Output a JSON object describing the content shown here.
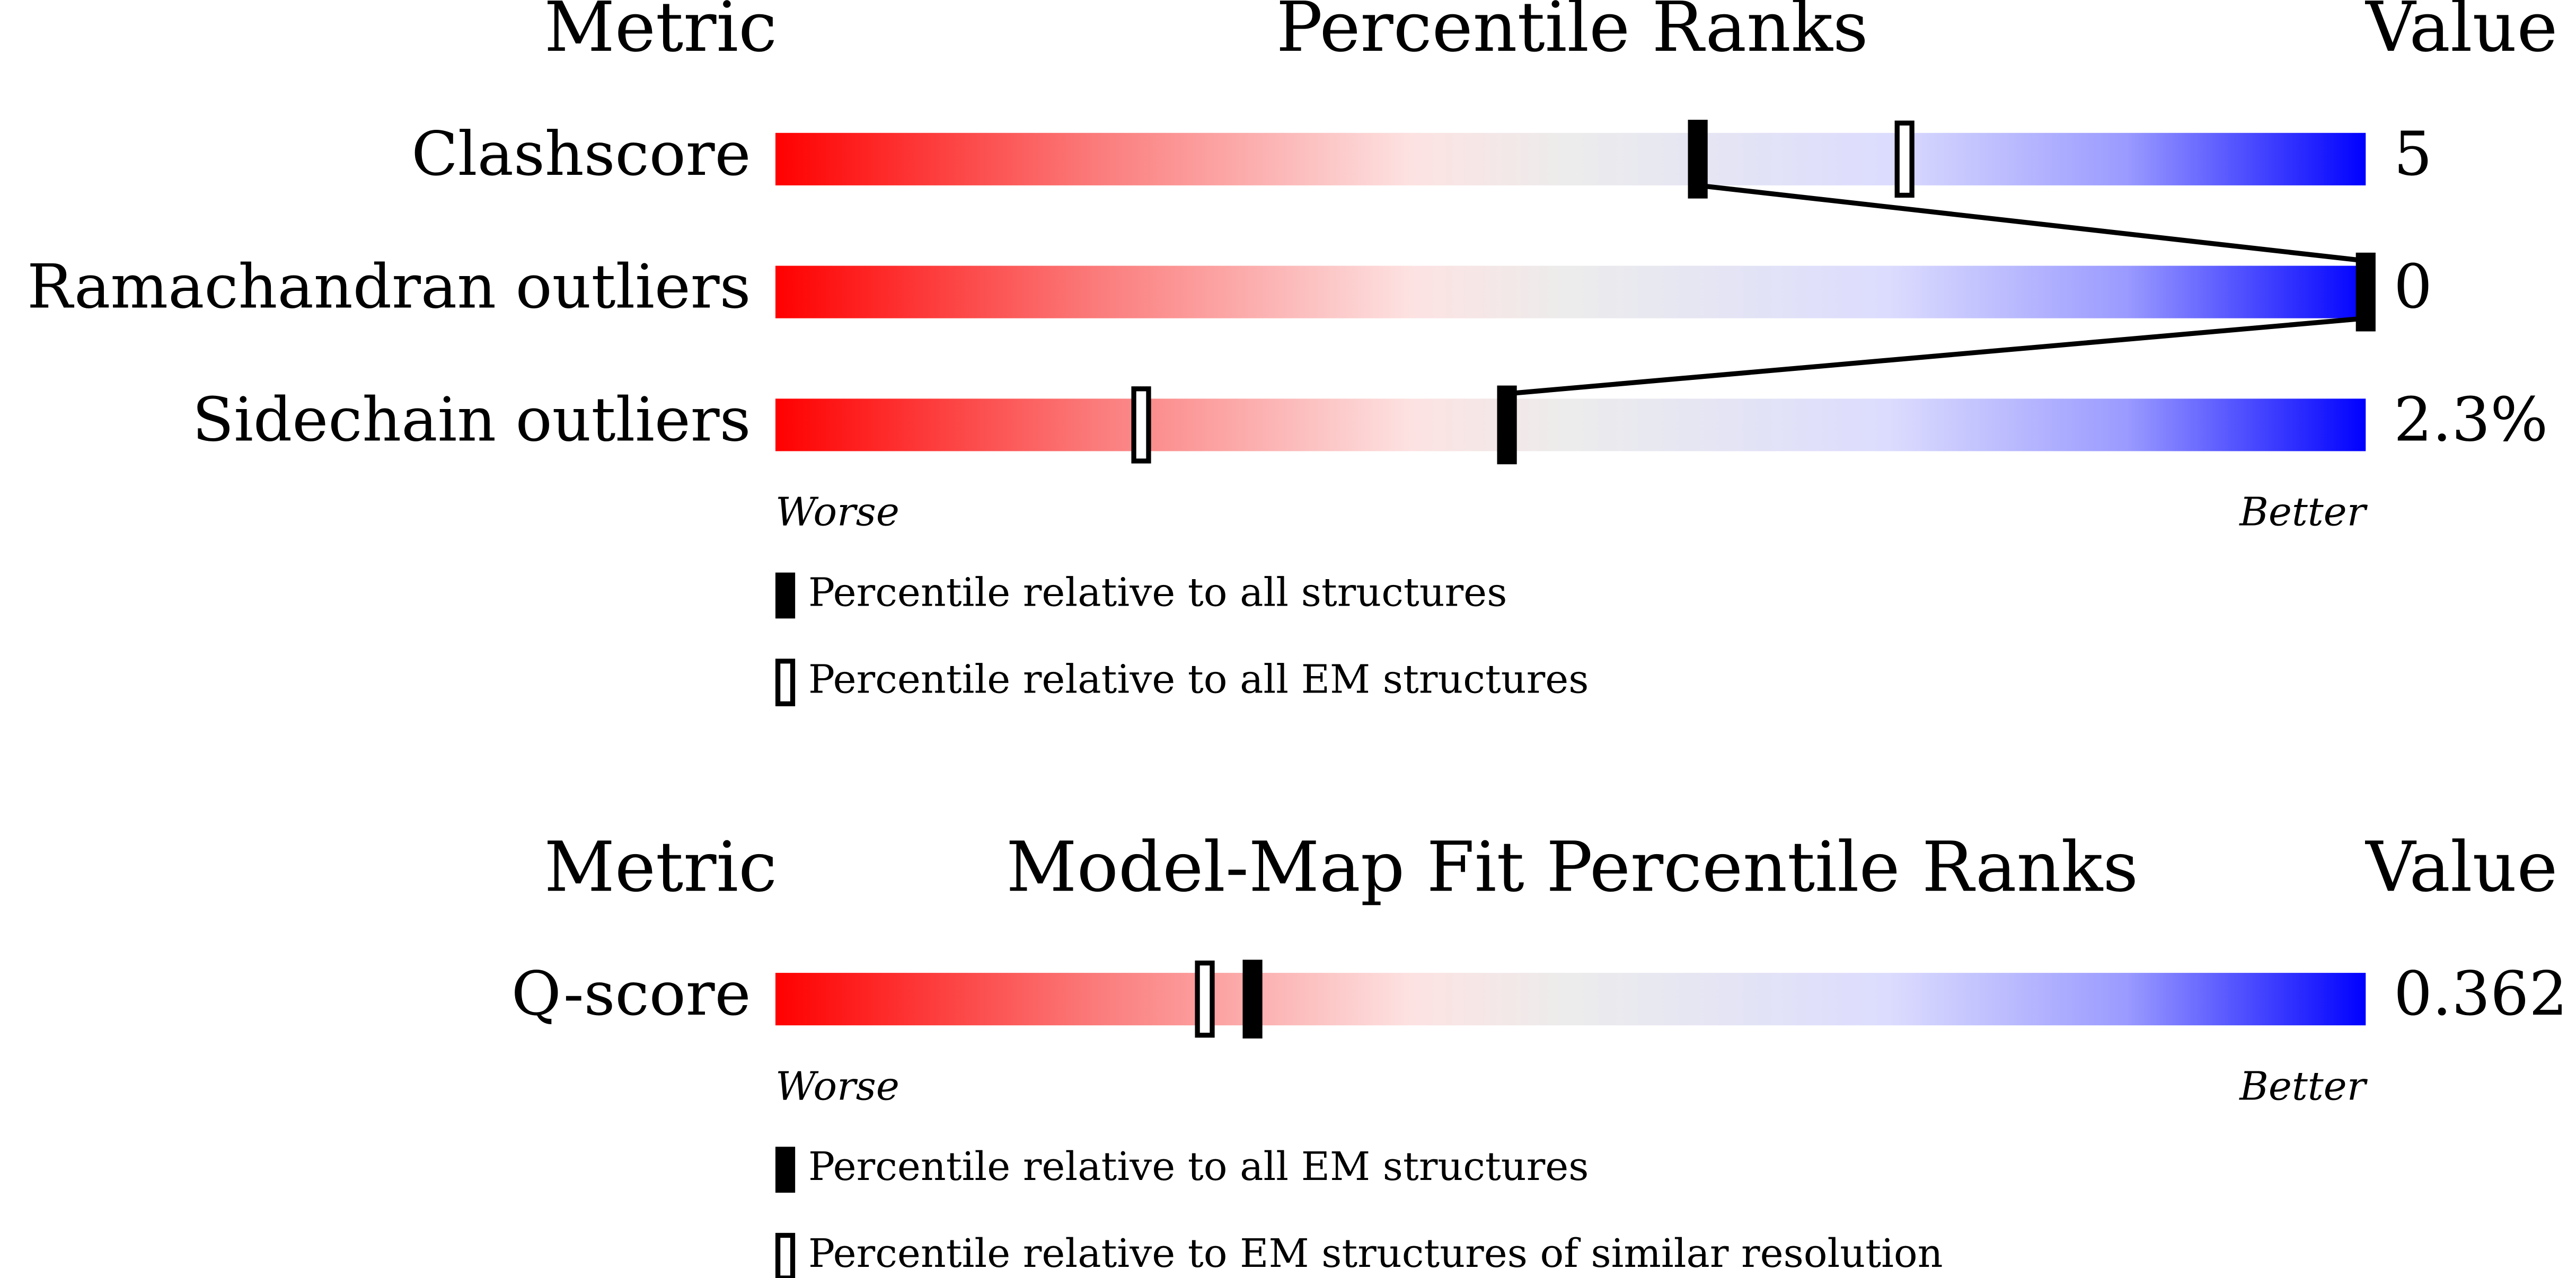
{
  "xlim": [
    0,
    100
  ],
  "panels": [
    {
      "headers": {
        "metric": "Metric",
        "title": "Percentile Ranks",
        "value": "Value"
      },
      "rows": [
        {
          "metric": "Clashscore",
          "value": "5",
          "percentile_filled": 58,
          "percentile_open": 71
        },
        {
          "metric": "Ramachandran outliers",
          "value": "0",
          "percentile_filled": 100
        },
        {
          "metric": "Sidechain outliers",
          "value": "2.3%",
          "percentile_filled": 46,
          "percentile_open": 23
        }
      ],
      "worse": "Worse",
      "better": "Better",
      "legend": {
        "filled": "Percentile relative to all structures",
        "open": "Percentile relative to all EM structures"
      }
    },
    {
      "headers": {
        "metric": "Metric",
        "title": "Model-Map Fit Percentile Ranks",
        "value": "Value"
      },
      "rows": [
        {
          "metric": "Q-score",
          "value": "0.362",
          "percentile_filled": 30,
          "percentile_open": 27
        }
      ],
      "worse": "Worse",
      "better": "Better",
      "legend": {
        "filled": "Percentile relative to all EM structures",
        "open": "Percentile relative to EM structures of similar resolution"
      }
    }
  ]
}
